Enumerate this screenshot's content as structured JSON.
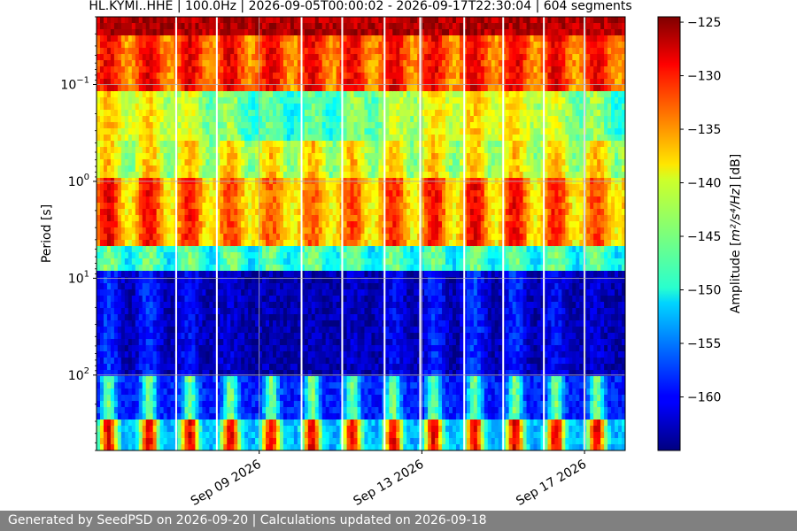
{
  "chart_data": {
    "type": "heatmap",
    "title": "HL.KYMI..HHE | 100.0Hz | 2026-09-05T00:00:02 - 2026-09-17T22:30:04 | 604 segments",
    "xlabel": "",
    "ylabel": "Period [s]",
    "x_ticks": [
      "Sep 09 2026",
      "Sep 13 2026",
      "Sep 17 2026"
    ],
    "x_tick_dates": [
      "2026-09-09",
      "2026-09-13",
      "2026-09-17"
    ],
    "x_range": [
      "2026-09-05T00:00:02",
      "2026-09-18T00:00:00"
    ],
    "y_scale": "log",
    "y_inverted": true,
    "y_range": [
      0.02,
      600
    ],
    "y_ticks": [
      {
        "value": 0.1,
        "base": "10",
        "exp": "−1"
      },
      {
        "value": 1,
        "base": "10",
        "exp": "0"
      },
      {
        "value": 10,
        "base": "10",
        "exp": "1"
      },
      {
        "value": 100,
        "base": "10",
        "exp": "2"
      }
    ],
    "grid": true,
    "colormap": "jet",
    "colorbar": {
      "label_prefix": "Amplitude [",
      "label_math": "m²/s⁴/Hz",
      "label_suffix": "] [dB]",
      "range": [
        -165,
        -124.5
      ],
      "ticks": [
        -125,
        -130,
        -135,
        -140,
        -145,
        -150,
        -155,
        -160
      ]
    },
    "data_gaps": [
      "2026-09-06T23:00",
      "2026-09-07T23:00",
      "2026-09-10T01:00",
      "2026-09-11T01:00",
      "2026-09-12T02:00",
      "2026-09-12T23:00",
      "2026-09-14T01:00",
      "2026-09-15T00:00",
      "2026-09-16T00:00",
      "2026-09-17T00:00"
    ],
    "segments": 604
  },
  "footer": {
    "text": "Generated by SeedPSD on 2026-09-20 | Calculations updated on 2026-09-18"
  }
}
